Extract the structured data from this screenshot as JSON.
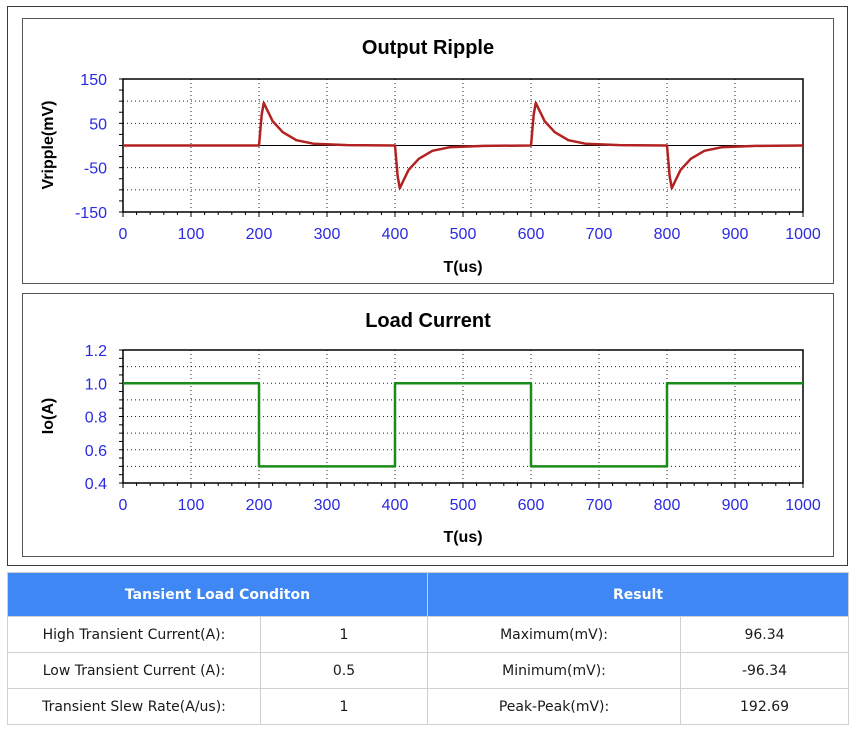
{
  "chart_data": [
    {
      "type": "line",
      "title": "Output Ripple",
      "xlabel": "T(us)",
      "ylabel": "Vripple(mV)",
      "xlim": [
        0,
        1000
      ],
      "ylim": [
        -150,
        150
      ],
      "x_ticks": [
        "0",
        "100",
        "200",
        "300",
        "400",
        "500",
        "600",
        "700",
        "800",
        "900",
        "1000"
      ],
      "y_ticks": [
        "150",
        "50",
        "-50",
        "-150"
      ],
      "grid": true,
      "series": [
        {
          "color": "#b22222",
          "x": [
            0,
            200,
            204,
            207,
            212,
            220,
            235,
            255,
            280,
            330,
            400,
            404,
            407,
            412,
            420,
            435,
            455,
            480,
            530,
            600,
            604,
            607,
            612,
            620,
            635,
            655,
            680,
            730,
            800,
            804,
            807,
            812,
            820,
            835,
            855,
            880,
            930,
            1000
          ],
          "y": [
            0,
            0,
            70,
            96.34,
            80,
            55,
            30,
            12,
            4,
            1,
            0,
            -70,
            -96.34,
            -80,
            -55,
            -30,
            -12,
            -4,
            -1,
            0,
            70,
            96.34,
            80,
            55,
            30,
            12,
            4,
            1,
            0,
            -70,
            -96.34,
            -80,
            -55,
            -30,
            -12,
            -4,
            -1,
            0
          ]
        }
      ]
    },
    {
      "type": "line",
      "title": "Load Current",
      "xlabel": "T(us)",
      "ylabel": "Io(A)",
      "xlim": [
        0,
        1000
      ],
      "ylim": [
        0.4,
        1.2
      ],
      "x_ticks": [
        "0",
        "100",
        "200",
        "300",
        "400",
        "500",
        "600",
        "700",
        "800",
        "900",
        "1000"
      ],
      "y_ticks": [
        "1.2",
        "1.0",
        "0.8",
        "0.6",
        "0.4"
      ],
      "grid": true,
      "series": [
        {
          "color": "#1a8c1a",
          "x": [
            0,
            200,
            200,
            400,
            400,
            600,
            600,
            800,
            800,
            1000
          ],
          "y": [
            1.0,
            1.0,
            0.5,
            0.5,
            1.0,
            1.0,
            0.5,
            0.5,
            1.0,
            1.0
          ]
        }
      ]
    }
  ],
  "table": {
    "header_left": "Tansient Load Conditon",
    "header_right": "Result",
    "rows": [
      {
        "label": "High Transient Current(A):",
        "value": "1",
        "result_label": "Maximum(mV):",
        "result_value": "96.34"
      },
      {
        "label": "Low Transient Current (A):",
        "value": "0.5",
        "result_label": "Minimum(mV):",
        "result_value": "-96.34"
      },
      {
        "label": "Transient Slew Rate(A/us):",
        "value": "1",
        "result_label": "Peak-Peak(mV):",
        "result_value": "192.69"
      }
    ]
  }
}
